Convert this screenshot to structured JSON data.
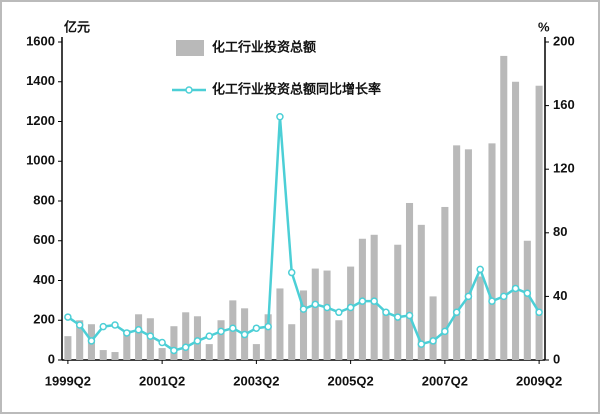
{
  "chart_data": {
    "type": "bar_line",
    "y_label": "亿元",
    "y2_label": "%",
    "categories": [
      "1999Q2",
      null,
      null,
      null,
      null,
      null,
      null,
      null,
      "2001Q2",
      null,
      null,
      null,
      null,
      null,
      null,
      null,
      "2003Q2",
      null,
      null,
      null,
      null,
      null,
      null,
      null,
      "2005Q2",
      null,
      null,
      null,
      null,
      null,
      null,
      null,
      "2007Q2",
      null,
      null,
      null,
      null,
      null,
      null,
      null,
      "2009Q2"
    ],
    "series": [
      {
        "name": "化工行业投资总额",
        "color": "#b9b9b9",
        "type": "bar",
        "values": [
          120,
          200,
          180,
          50,
          40,
          150,
          230,
          210,
          60,
          170,
          240,
          220,
          80,
          200,
          300,
          260,
          80,
          230,
          360,
          180,
          350,
          460,
          450,
          200,
          470,
          610,
          630,
          250,
          580,
          790,
          680,
          320,
          770,
          1080,
          1060,
          420,
          1090,
          1530,
          1400,
          600,
          1380
        ]
      },
      {
        "name": "化工行业投资总额同比增长率",
        "color": "#4ccfd6",
        "type": "line",
        "axis": "y2",
        "values": [
          27,
          22,
          12,
          21,
          22,
          17,
          19,
          15,
          11,
          6,
          8,
          12,
          15,
          18,
          20,
          16,
          20,
          21,
          153,
          55,
          32,
          35,
          33,
          30,
          33,
          37,
          37,
          30,
          27,
          28,
          10,
          12,
          18,
          30,
          40,
          57,
          37,
          40,
          45,
          42,
          30
        ]
      }
    ],
    "ylim": [
      0,
      1600
    ],
    "yticks": [
      0,
      200,
      400,
      600,
      800,
      1000,
      1200,
      1400,
      1600
    ],
    "y2lim": [
      0,
      200
    ],
    "y2ticks": [
      0,
      40,
      80,
      120,
      160,
      200
    ]
  }
}
